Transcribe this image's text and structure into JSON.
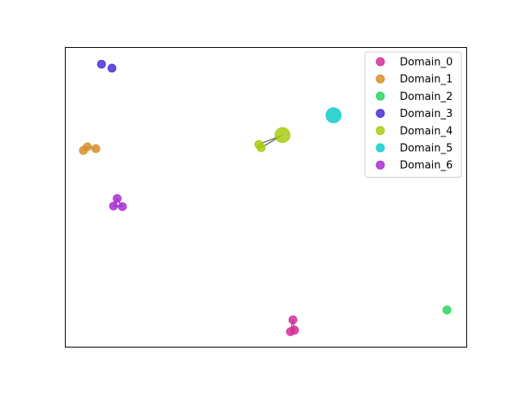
{
  "chart_data": {
    "type": "scatter",
    "title": "",
    "xlabel": "",
    "ylabel": "",
    "axes_ticks": false,
    "grid": false,
    "legend_position": "top-right",
    "xlim": [
      0,
      100
    ],
    "ylim": [
      0,
      100
    ],
    "series": [
      {
        "name": "Domain_0",
        "color": "#d62d9b",
        "points": [
          [
            56.7,
            9.2
          ],
          [
            56.1,
            5.3
          ],
          [
            57.1,
            5.8
          ]
        ],
        "edges": [
          [
            0,
            1
          ],
          [
            0,
            2
          ]
        ]
      },
      {
        "name": "Domain_1",
        "color": "#d8902a",
        "points": [
          [
            4.6,
            65.6
          ],
          [
            5.6,
            66.8
          ],
          [
            7.7,
            66.2
          ]
        ],
        "edges": [
          [
            0,
            1
          ],
          [
            1,
            2
          ]
        ]
      },
      {
        "name": "Domain_2",
        "color": "#2cd661",
        "points": [
          [
            95.0,
            12.5
          ]
        ],
        "edges": []
      },
      {
        "name": "Domain_3",
        "color": "#4a2fd6",
        "points": [
          [
            9.1,
            94.3
          ],
          [
            11.7,
            93.0
          ]
        ],
        "edges": []
      },
      {
        "name": "Domain_4",
        "color": "#a8cc13",
        "points": [
          [
            48.2,
            67.6
          ],
          [
            48.8,
            66.5
          ],
          [
            54.1,
            70.7
          ]
        ],
        "sizes": [
          1,
          1,
          3.5
        ],
        "edges": [
          [
            0,
            2
          ],
          [
            1,
            2
          ]
        ]
      },
      {
        "name": "Domain_5",
        "color": "#12cccc",
        "points": [
          [
            66.8,
            77.3
          ]
        ],
        "sizes": [
          3.5
        ],
        "edges": []
      },
      {
        "name": "Domain_6",
        "color": "#a92fd6",
        "points": [
          [
            13.0,
            49.6
          ],
          [
            12.1,
            47.1
          ],
          [
            14.3,
            46.9
          ]
        ],
        "edges": [
          [
            0,
            1
          ],
          [
            0,
            2
          ],
          [
            1,
            2
          ]
        ]
      }
    ]
  }
}
